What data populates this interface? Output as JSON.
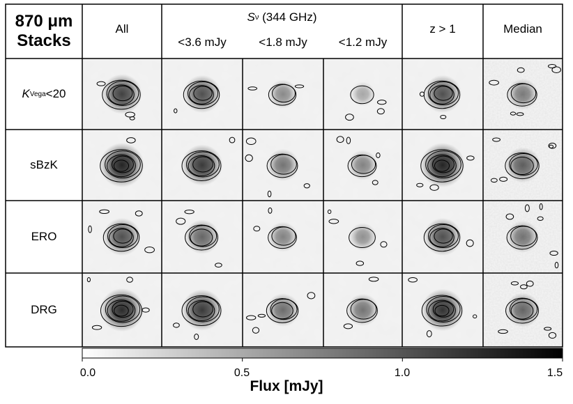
{
  "title": {
    "line1": "870 μm",
    "line2": "Stacks"
  },
  "group_header": {
    "symbol": "S",
    "subscript": "ν",
    "text": "(344 GHz)"
  },
  "columns": [
    "All",
    "<3.6 mJy",
    "<1.8 mJy",
    "<1.2 mJy",
    "z > 1",
    "Median"
  ],
  "rows": [
    {
      "symbol": "K",
      "subscript": "Vega",
      "suffix": "<20"
    },
    {
      "label": "sBzK"
    },
    {
      "label": "ERO"
    },
    {
      "label": "DRG"
    }
  ],
  "colorbar": {
    "label": "Flux [mJy]",
    "ticks": [
      "0.0",
      "0.5",
      "1.0",
      "1.5"
    ],
    "range": [
      0.0,
      1.5
    ],
    "colors": {
      "low": "#ffffff",
      "high": "#000000"
    }
  }
}
